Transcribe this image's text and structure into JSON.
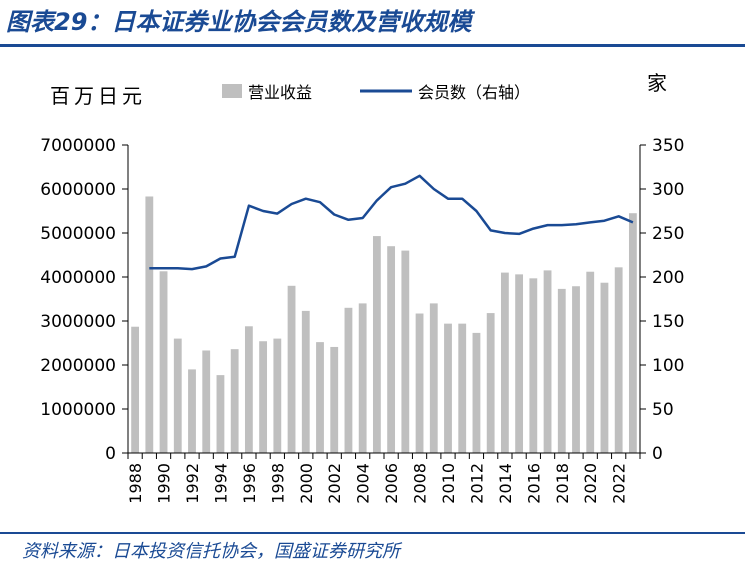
{
  "title": "图表29：日本证券业协会会员数及营收规模",
  "source": "资料来源：日本投资信托协会，国盛证券研究所",
  "chart_data": {
    "type": "bar",
    "left_unit": "百万日元",
    "right_unit": "家",
    "legend": [
      {
        "name": "营业收益",
        "kind": "bar",
        "color": "#bfbfbf"
      },
      {
        "name": "会员数（右轴）",
        "kind": "line",
        "color": "#1a4a94"
      }
    ],
    "x_tick_labels": [
      "1988",
      "1990",
      "1992",
      "1994",
      "1996",
      "1998",
      "2000",
      "2002",
      "2004",
      "2006",
      "2008",
      "2010",
      "2012",
      "2014",
      "2016",
      "2018",
      "2020",
      "2022"
    ],
    "years": [
      1988,
      1989,
      1990,
      1991,
      1992,
      1993,
      1994,
      1995,
      1996,
      1997,
      1998,
      1999,
      2000,
      2001,
      2002,
      2003,
      2004,
      2005,
      2006,
      2007,
      2008,
      2009,
      2010,
      2011,
      2012,
      2013,
      2014,
      2015,
      2016,
      2017,
      2018,
      2019,
      2020,
      2021,
      2022,
      2023
    ],
    "series": [
      {
        "name": "营业收益",
        "axis": "left",
        "values": [
          2870000,
          5830000,
          4130000,
          2600000,
          1900000,
          2330000,
          1770000,
          2360000,
          2880000,
          2540000,
          2600000,
          3800000,
          3230000,
          2520000,
          2410000,
          3300000,
          3400000,
          4930000,
          4700000,
          4600000,
          3170000,
          3400000,
          2940000,
          2940000,
          2730000,
          3180000,
          4100000,
          4060000,
          3970000,
          4150000,
          3730000,
          3790000,
          4120000,
          3870000,
          4220000,
          5450000
        ]
      },
      {
        "name": "会员数（右轴）",
        "axis": "right",
        "values": [
          null,
          210,
          210,
          210,
          209,
          212,
          221,
          223,
          281,
          275,
          272,
          283,
          289,
          285,
          271,
          265,
          267,
          287,
          302,
          306,
          315,
          300,
          289,
          289,
          275,
          253,
          250,
          249,
          255,
          259,
          259,
          260,
          262,
          264,
          269,
          262
        ]
      }
    ],
    "left_axis": {
      "ticks": [
        "0",
        "1000000",
        "2000000",
        "3000000",
        "4000000",
        "5000000",
        "6000000",
        "7000000"
      ],
      "ylim": [
        0,
        7000000
      ]
    },
    "right_axis": {
      "ticks": [
        "0",
        "50",
        "100",
        "150",
        "200",
        "250",
        "300",
        "350"
      ],
      "ylim": [
        0,
        350
      ]
    }
  }
}
